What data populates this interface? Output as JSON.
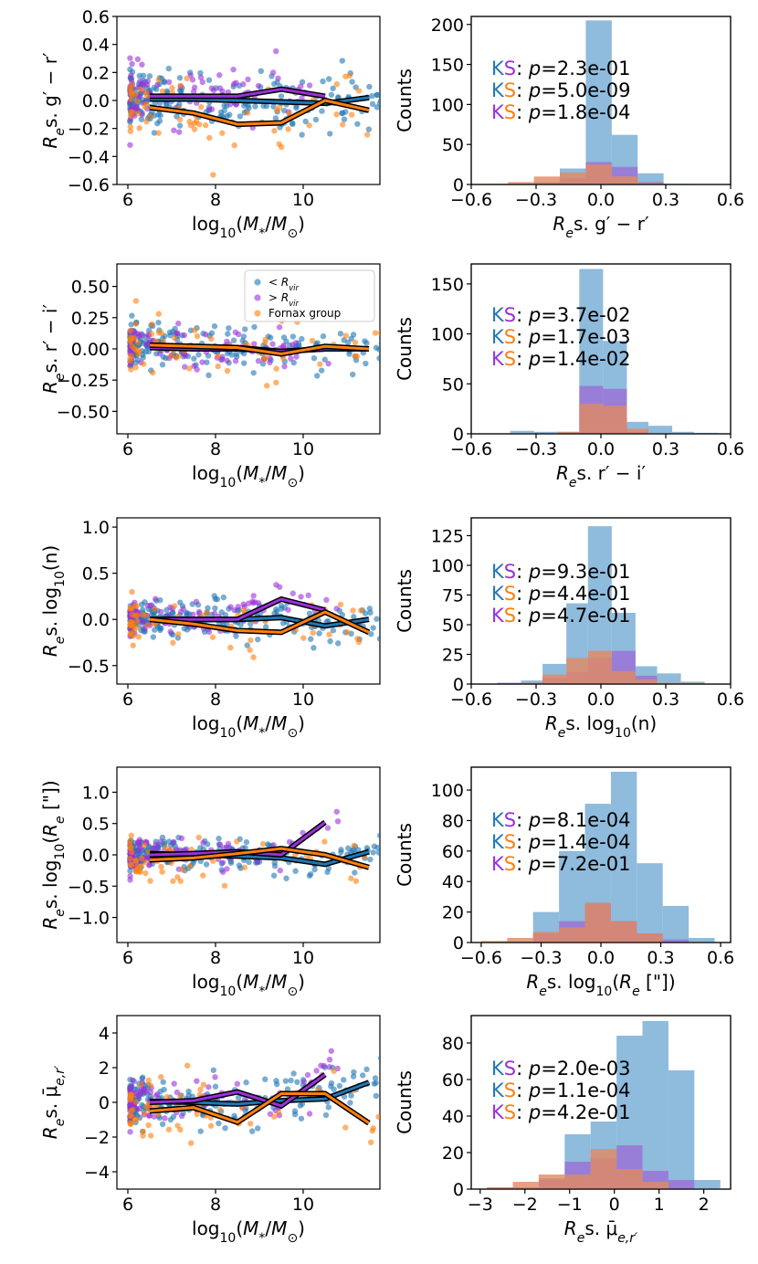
{
  "colors": {
    "inside": "#1f77b4",
    "outside": "#9b30d9",
    "fornax": "#ff7f0e",
    "hist_inside": "#8fbbdc",
    "hist_outside": "#9a6fd6",
    "hist_fornax": "#e28a60",
    "axis": "#000000"
  },
  "legend": {
    "inside": "< R_vir",
    "outside": "> R_vir",
    "fornax": "Fornax group"
  },
  "ks_prefix": "KS",
  "chart_data": [
    {
      "type": "scatter",
      "name": "gr-scatter",
      "xlabel": "log10(M*/M⊙)",
      "ylabel": "Res. g′ − r′",
      "xlim": [
        5.75,
        11.75
      ],
      "ylim": [
        -0.6,
        0.6
      ],
      "xticks": [
        6,
        8,
        10
      ],
      "xticklabels": [
        "6",
        "8",
        "10"
      ],
      "yticks": [
        -0.6,
        -0.4,
        -0.2,
        0.0,
        0.2,
        0.4,
        0.6
      ],
      "yticklabels": [
        "−0.6",
        "−0.4",
        "−0.2",
        "0.0",
        "0.2",
        "0.4",
        "0.6"
      ],
      "scatter_spread": 0.1,
      "series": [
        {
          "name": "< R_vir",
          "x": [
            6.5,
            7.5,
            8.5,
            9.5,
            10.5,
            11.5
          ],
          "y": [
            0.01,
            0.01,
            0.0,
            -0.01,
            -0.02,
            0.02
          ]
        },
        {
          "name": "> R_vir",
          "x": [
            6.5,
            7.5,
            8.5,
            9.5,
            10.5
          ],
          "y": [
            0.03,
            0.03,
            0.03,
            0.08,
            0.03
          ]
        },
        {
          "name": "Fornax group",
          "x": [
            6.5,
            7.5,
            8.5,
            9.5,
            10.5,
            11.5
          ],
          "y": [
            -0.05,
            -0.09,
            -0.17,
            -0.16,
            0.0,
            -0.07
          ]
        }
      ]
    },
    {
      "type": "bar",
      "name": "gr-hist",
      "xlabel": "Res. g′ − r′",
      "ylabel": "Counts",
      "xlim": [
        -0.6,
        0.6
      ],
      "ylim": [
        0,
        210
      ],
      "xticks": [
        -0.6,
        -0.3,
        0.0,
        0.3,
        0.6
      ],
      "xticklabels": [
        "−0.6",
        "−0.3",
        "0.0",
        "0.3",
        "0.6"
      ],
      "yticks": [
        0,
        50,
        100,
        150,
        200
      ],
      "yticklabels": [
        "0",
        "50",
        "100",
        "150",
        "200"
      ],
      "bin_edges": [
        -0.55,
        -0.43,
        -0.31,
        -0.19,
        -0.07,
        0.05,
        0.17,
        0.29,
        0.41,
        0.53
      ],
      "series": [
        {
          "name": "< R_vir",
          "values": [
            0,
            1,
            3,
            20,
            205,
            62,
            14,
            1,
            0
          ]
        },
        {
          "name": "> R_vir",
          "values": [
            0,
            0,
            2,
            8,
            28,
            22,
            3,
            0,
            0
          ]
        },
        {
          "name": "Fornax group",
          "values": [
            1,
            3,
            10,
            15,
            25,
            10,
            2,
            0,
            0
          ]
        }
      ],
      "ks": [
        {
          "label": "KS",
          "c1": "inside",
          "c2": "outside",
          "text": ": p=2.3e-01"
        },
        {
          "label": "KS",
          "c1": "inside",
          "c2": "fornax",
          "text": ": p=5.0e-09"
        },
        {
          "label": "KS",
          "c1": "outside",
          "c2": "fornax",
          "text": ": p=1.8e-04"
        }
      ]
    },
    {
      "type": "scatter",
      "name": "ri-scatter",
      "xlabel": "log10(M*/M⊙)",
      "ylabel": "Res. r′ − i′",
      "xlim": [
        5.75,
        11.75
      ],
      "ylim": [
        -0.68,
        0.68
      ],
      "xticks": [
        6,
        8,
        10
      ],
      "xticklabels": [
        "6",
        "8",
        "10"
      ],
      "yticks": [
        -0.5,
        -0.25,
        0.0,
        0.25,
        0.5
      ],
      "yticklabels": [
        "−0.50",
        "−0.25",
        "0.00",
        "0.25",
        "0.50"
      ],
      "scatter_spread": 0.08,
      "series": [
        {
          "name": "< R_vir",
          "x": [
            6.5,
            7.5,
            8.5,
            9.5,
            10.5,
            11.5
          ],
          "y": [
            0.02,
            0.02,
            0.01,
            -0.02,
            0.0,
            0.0
          ]
        },
        {
          "name": "> R_vir",
          "x": [
            6.5,
            7.5,
            8.5,
            9.5,
            10.5
          ],
          "y": [
            0.01,
            0.0,
            0.0,
            -0.02,
            0.0
          ]
        },
        {
          "name": "Fornax group",
          "x": [
            6.5,
            7.5,
            8.5,
            9.5,
            10.5,
            11.5
          ],
          "y": [
            0.03,
            0.02,
            0.01,
            -0.04,
            0.02,
            0.0
          ]
        }
      ],
      "legend_position": "upper-right"
    },
    {
      "type": "bar",
      "name": "ri-hist",
      "xlabel": "Res. r′ − i′",
      "ylabel": "Counts",
      "xlim": [
        -0.6,
        0.6
      ],
      "ylim": [
        0,
        170
      ],
      "xticks": [
        -0.6,
        -0.3,
        0.0,
        0.3,
        0.6
      ],
      "xticklabels": [
        "−0.6",
        "−0.3",
        "0.0",
        "0.3",
        "0.6"
      ],
      "yticks": [
        0,
        50,
        100,
        150
      ],
      "yticklabels": [
        "0",
        "50",
        "100",
        "150"
      ],
      "bin_edges": [
        -0.42,
        -0.31,
        -0.2,
        -0.1,
        0.01,
        0.12,
        0.22,
        0.33,
        0.43,
        0.54
      ],
      "series": [
        {
          "name": "< R_vir",
          "values": [
            3,
            2,
            2,
            165,
            93,
            12,
            8,
            2,
            1
          ]
        },
        {
          "name": "> R_vir",
          "values": [
            0,
            0,
            0,
            48,
            45,
            2,
            0,
            0,
            0
          ]
        },
        {
          "name": "Fornax group",
          "values": [
            0,
            0,
            2,
            30,
            28,
            5,
            0,
            0,
            0
          ]
        }
      ],
      "ks": [
        {
          "label": "KS",
          "c1": "inside",
          "c2": "outside",
          "text": ": p=3.7e-02"
        },
        {
          "label": "KS",
          "c1": "inside",
          "c2": "fornax",
          "text": ": p=1.7e-03"
        },
        {
          "label": "KS",
          "c1": "outside",
          "c2": "fornax",
          "text": ": p=1.4e-02"
        }
      ]
    },
    {
      "type": "scatter",
      "name": "n-scatter",
      "xlabel": "log10(M*/M⊙)",
      "ylabel": "Res. log10(n)",
      "xlim": [
        5.75,
        11.75
      ],
      "ylim": [
        -0.7,
        1.1
      ],
      "xticks": [
        6,
        8,
        10
      ],
      "xticklabels": [
        "6",
        "8",
        "10"
      ],
      "yticks": [
        -0.5,
        0.0,
        0.5,
        1.0
      ],
      "yticklabels": [
        "−0.5",
        "0.0",
        "0.5",
        "1.0"
      ],
      "scatter_spread": 0.1,
      "series": [
        {
          "name": "< R_vir",
          "x": [
            6.5,
            7.5,
            8.5,
            9.5,
            10.5,
            11.5
          ],
          "y": [
            0.0,
            0.0,
            0.0,
            0.02,
            -0.07,
            0.0
          ]
        },
        {
          "name": "> R_vir",
          "x": [
            6.5,
            7.5,
            8.5,
            9.5,
            10.5
          ],
          "y": [
            0.0,
            0.0,
            0.0,
            0.22,
            0.1
          ]
        },
        {
          "name": "Fornax group",
          "x": [
            6.5,
            7.5,
            8.5,
            9.5,
            10.5,
            11.5
          ],
          "y": [
            0.0,
            -0.05,
            -0.12,
            -0.14,
            0.08,
            -0.14
          ]
        }
      ]
    },
    {
      "type": "bar",
      "name": "n-hist",
      "xlabel": "Res. log10(n)",
      "ylabel": "Counts",
      "xlim": [
        -0.6,
        0.6
      ],
      "ylim": [
        0,
        140
      ],
      "xticks": [
        -0.6,
        -0.3,
        0.0,
        0.3,
        0.6
      ],
      "xticklabels": [
        "−0.6",
        "−0.3",
        "0.0",
        "0.3",
        "0.6"
      ],
      "yticks": [
        0,
        25,
        50,
        75,
        100,
        125
      ],
      "yticklabels": [
        "0",
        "25",
        "50",
        "75",
        "100",
        "125"
      ],
      "bin_edges": [
        -0.48,
        -0.37,
        -0.27,
        -0.16,
        -0.06,
        0.05,
        0.16,
        0.26,
        0.37,
        0.48
      ],
      "series": [
        {
          "name": "< R_vir",
          "values": [
            1,
            3,
            17,
            68,
            133,
            60,
            15,
            9,
            2
          ]
        },
        {
          "name": "> R_vir",
          "values": [
            1,
            1,
            5,
            10,
            22,
            28,
            7,
            0,
            0
          ]
        },
        {
          "name": "Fornax group",
          "values": [
            0,
            1,
            8,
            22,
            28,
            11,
            4,
            1,
            1
          ]
        }
      ],
      "ks": [
        {
          "label": "KS",
          "c1": "inside",
          "c2": "outside",
          "text": ": p=9.3e-01"
        },
        {
          "label": "KS",
          "c1": "inside",
          "c2": "fornax",
          "text": ": p=4.4e-01"
        },
        {
          "label": "KS",
          "c1": "outside",
          "c2": "fornax",
          "text": ": p=4.7e-01"
        }
      ]
    },
    {
      "type": "scatter",
      "name": "re-scatter",
      "xlabel": "log10(M*/M⊙)",
      "ylabel": "Res. log10(Re [\"])",
      "xlim": [
        5.75,
        11.75
      ],
      "ylim": [
        -1.4,
        1.4
      ],
      "xticks": [
        6,
        8,
        10
      ],
      "xticklabels": [
        "6",
        "8",
        "10"
      ],
      "yticks": [
        -1.0,
        -0.5,
        0.0,
        0.5,
        1.0
      ],
      "yticklabels": [
        "−1.0",
        "−0.5",
        "0.0",
        "0.5",
        "1.0"
      ],
      "scatter_spread": 0.12,
      "series": [
        {
          "name": "< R_vir",
          "x": [
            6.5,
            7.5,
            8.5,
            9.5,
            10.5,
            11.5
          ],
          "y": [
            0.02,
            0.0,
            -0.02,
            -0.05,
            -0.15,
            0.05
          ]
        },
        {
          "name": "> R_vir",
          "x": [
            6.5,
            7.5,
            8.5,
            9.5,
            10.5
          ],
          "y": [
            0.0,
            0.02,
            0.05,
            0.0,
            0.52
          ]
        },
        {
          "name": "Fornax group",
          "x": [
            6.5,
            7.5,
            8.5,
            9.5,
            10.5,
            11.5
          ],
          "y": [
            -0.08,
            -0.05,
            0.02,
            0.1,
            0.0,
            -0.2
          ]
        }
      ]
    },
    {
      "type": "bar",
      "name": "re-hist",
      "xlabel": "Res. log10(Re [\"])",
      "ylabel": "Counts",
      "xlim": [
        -0.65,
        0.65
      ],
      "ylim": [
        0,
        115
      ],
      "xticks": [
        -0.6,
        -0.3,
        0.0,
        0.3,
        0.6
      ],
      "xticklabels": [
        "−0.6",
        "−0.3",
        "0.0",
        "0.3",
        "0.6"
      ],
      "yticks": [
        0,
        20,
        40,
        60,
        80,
        100
      ],
      "yticklabels": [
        "0",
        "20",
        "40",
        "60",
        "80",
        "100"
      ],
      "bin_edges": [
        -0.6,
        -0.47,
        -0.34,
        -0.21,
        -0.08,
        0.05,
        0.18,
        0.31,
        0.44,
        0.57
      ],
      "series": [
        {
          "name": "< R_vir",
          "values": [
            0,
            1,
            20,
            60,
            91,
            112,
            52,
            24,
            3
          ]
        },
        {
          "name": "> R_vir",
          "values": [
            0,
            0,
            6,
            14,
            26,
            14,
            6,
            2,
            0
          ]
        },
        {
          "name": "Fornax group",
          "values": [
            1,
            3,
            7,
            10,
            26,
            14,
            6,
            0,
            0
          ]
        }
      ],
      "ks": [
        {
          "label": "KS",
          "c1": "inside",
          "c2": "outside",
          "text": ": p=8.1e-04"
        },
        {
          "label": "KS",
          "c1": "inside",
          "c2": "fornax",
          "text": ": p=1.4e-04"
        },
        {
          "label": "KS",
          "c1": "outside",
          "c2": "fornax",
          "text": ": p=7.2e-01"
        }
      ]
    },
    {
      "type": "scatter",
      "name": "mu-scatter",
      "xlabel": "log10(M*/M⊙)",
      "ylabel": "Res. μ̄e,r′",
      "xlim": [
        5.75,
        11.75
      ],
      "ylim": [
        -5.0,
        5.0
      ],
      "xticks": [
        6,
        8,
        10
      ],
      "xticklabels": [
        "6",
        "8",
        "10"
      ],
      "yticks": [
        -4,
        -2,
        0,
        2,
        4
      ],
      "yticklabels": [
        "−4",
        "−2",
        "0",
        "2",
        "4"
      ],
      "scatter_spread": 0.7,
      "series": [
        {
          "name": "< R_vir",
          "x": [
            6.5,
            7.5,
            8.5,
            9.5,
            10.5,
            11.5
          ],
          "y": [
            0.05,
            0.0,
            -0.1,
            0.1,
            0.2,
            1.15
          ]
        },
        {
          "name": "> R_vir",
          "x": [
            6.5,
            7.5,
            8.5,
            9.5,
            10.5
          ],
          "y": [
            0.0,
            0.1,
            0.6,
            -0.2,
            1.6
          ]
        },
        {
          "name": "Fornax group",
          "x": [
            6.5,
            7.5,
            8.5,
            9.5,
            10.5,
            11.5
          ],
          "y": [
            -0.5,
            -0.3,
            -1.15,
            0.5,
            0.5,
            -1.2
          ]
        }
      ]
    },
    {
      "type": "bar",
      "name": "mu-hist",
      "xlabel": "Res. μ̄e,r′",
      "ylabel": "Counts",
      "xlim": [
        -3.2,
        2.6
      ],
      "ylim": [
        0,
        95
      ],
      "xticks": [
        -3,
        -2,
        -1,
        0,
        1,
        2
      ],
      "xticklabels": [
        "−3",
        "−2",
        "−1",
        "0",
        "1",
        "2"
      ],
      "yticks": [
        0,
        20,
        40,
        60,
        80
      ],
      "yticklabels": [
        "0",
        "20",
        "40",
        "60",
        "80"
      ],
      "bin_edges": [
        -2.85,
        -2.27,
        -1.69,
        -1.11,
        -0.53,
        0.05,
        0.63,
        1.21,
        1.79,
        2.37
      ],
      "series": [
        {
          "name": "< R_vir",
          "values": [
            1,
            1,
            6,
            30,
            37,
            84,
            92,
            65,
            5
          ]
        },
        {
          "name": "> R_vir",
          "values": [
            0,
            1,
            5,
            15,
            17,
            24,
            10,
            5,
            0
          ]
        },
        {
          "name": "Fornax group",
          "values": [
            1,
            4,
            8,
            8,
            22,
            11,
            4,
            0,
            0
          ]
        }
      ],
      "ks": [
        {
          "label": "KS",
          "c1": "inside",
          "c2": "outside",
          "text": ": p=2.0e-03"
        },
        {
          "label": "KS",
          "c1": "inside",
          "c2": "fornax",
          "text": ": p=1.1e-04"
        },
        {
          "label": "KS",
          "c1": "outside",
          "c2": "fornax",
          "text": ": p=4.2e-01"
        }
      ]
    }
  ]
}
